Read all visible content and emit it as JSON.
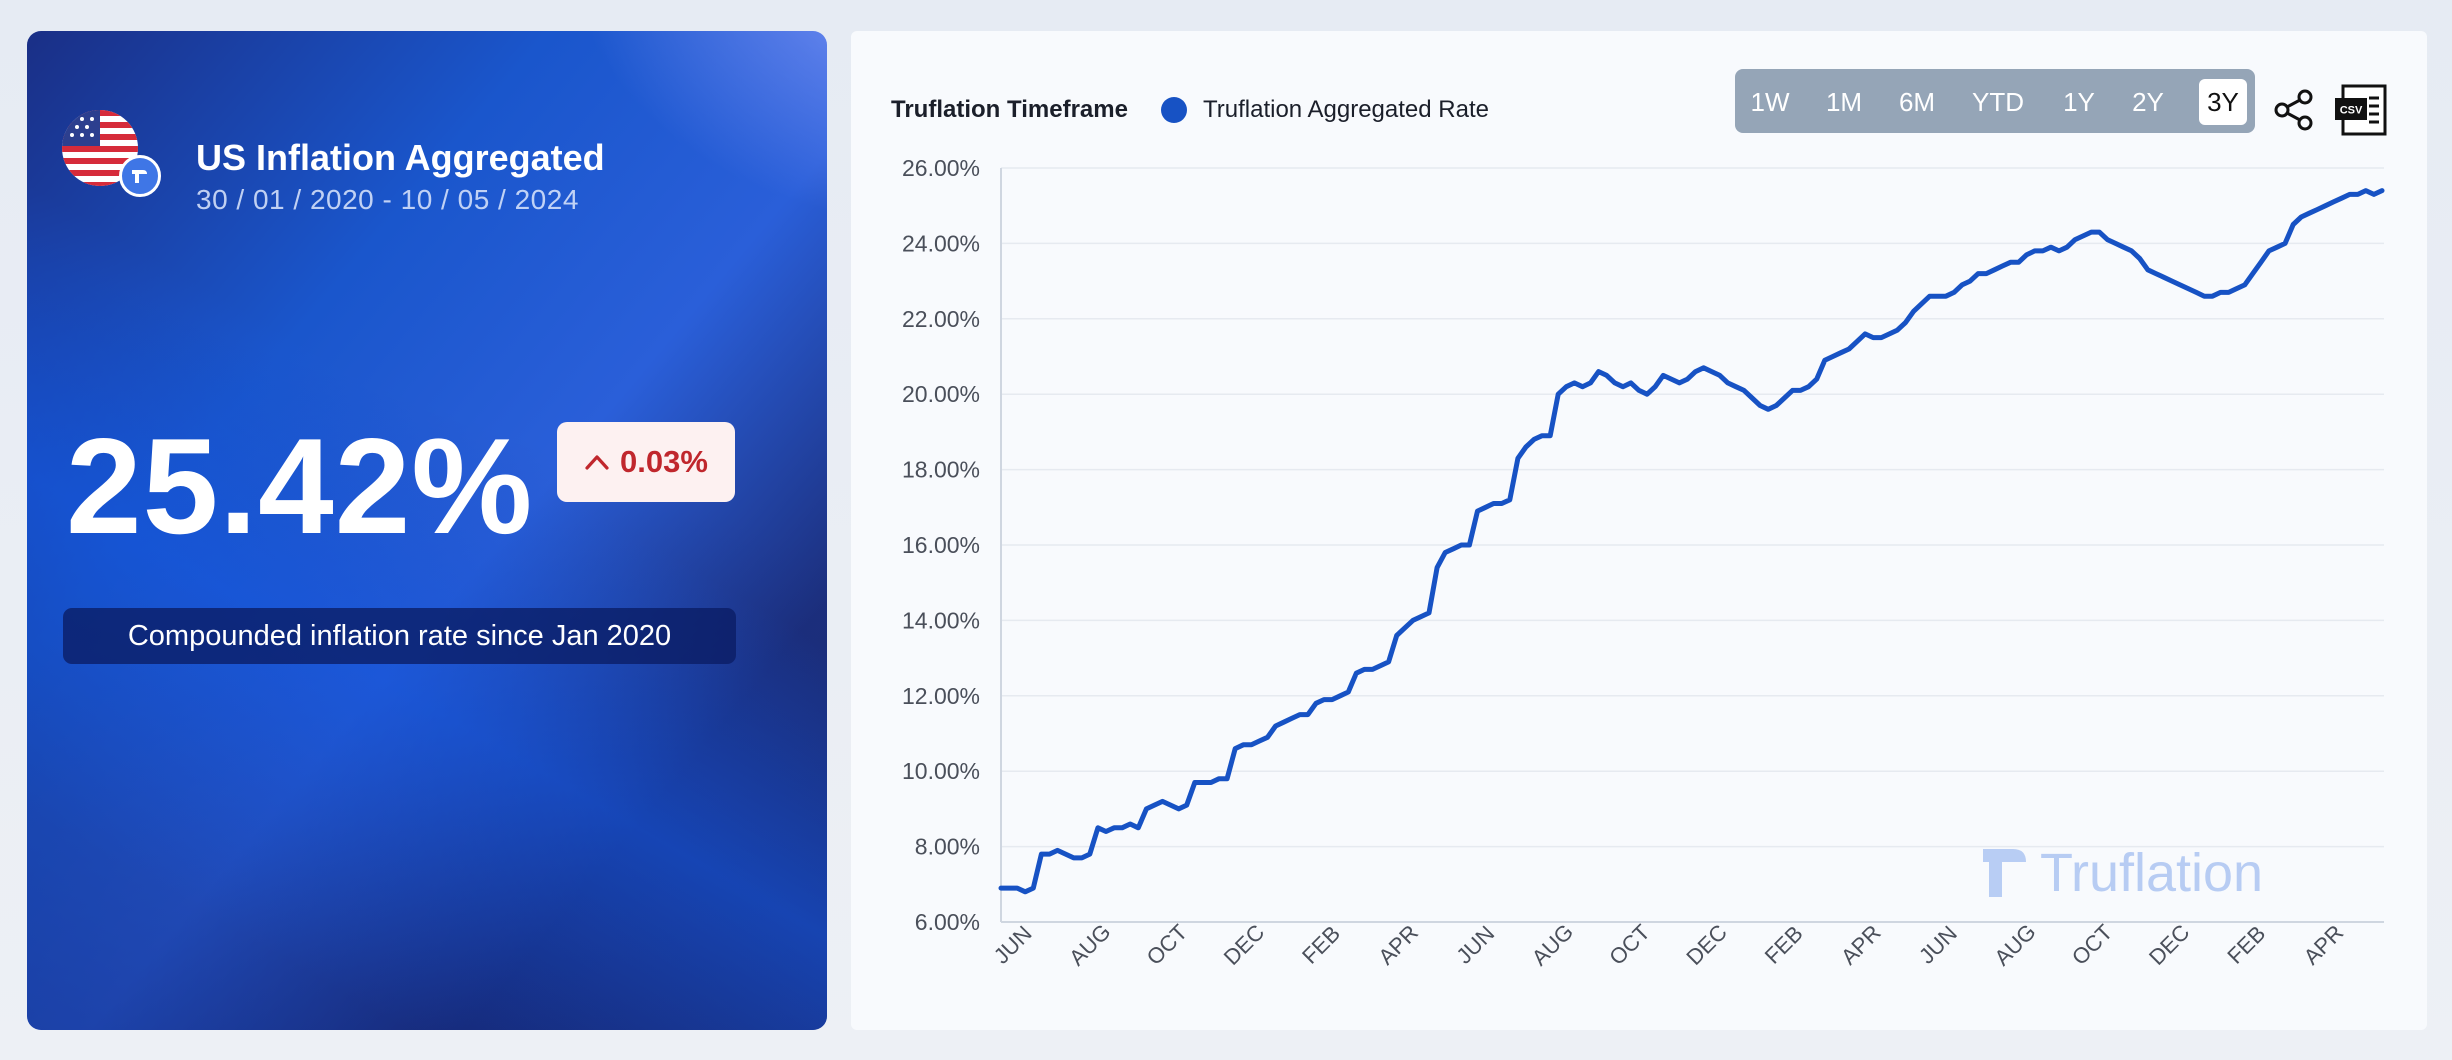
{
  "left_panel": {
    "title": "US Inflation Aggregated",
    "date_range": "30 / 01 / 2020 - 10 / 05 / 2024",
    "value": "25.42%",
    "change": "0.03%",
    "change_direction": "up",
    "caption": "Compounded inflation rate since Jan 2020",
    "icons": [
      "us-flag-icon",
      "truflation-logo-icon"
    ]
  },
  "chart_header": {
    "timeframe_label": "Truflation Timeframe",
    "series_label": "Truflation Aggregated Rate",
    "series_color": "#1752c4",
    "timeframes": [
      "1W",
      "1M",
      "6M",
      "YTD",
      "1Y",
      "2Y",
      "3Y"
    ],
    "active_timeframe": "3Y",
    "share_icon": "share-icon",
    "csv_icon": "csv-download-icon",
    "csv_text": "CSV"
  },
  "watermark": "Truflation",
  "chart_data": {
    "type": "line",
    "ylim": [
      6,
      26
    ],
    "y_ticks": [
      "6.00%",
      "8.00%",
      "10.00%",
      "12.00%",
      "14.00%",
      "16.00%",
      "18.00%",
      "20.00%",
      "22.00%",
      "24.00%",
      "26.00%"
    ],
    "x_ticks": [
      "JUN",
      "AUG",
      "OCT",
      "DEC",
      "FEB",
      "APR",
      "JUN",
      "AUG",
      "OCT",
      "DEC",
      "FEB",
      "APR",
      "JUN",
      "AUG",
      "OCT",
      "DEC",
      "FEB",
      "APR"
    ],
    "grid": true,
    "series": [
      {
        "name": "Truflation Aggregated Rate",
        "color": "#1752c4",
        "values": [
          6.9,
          6.9,
          6.9,
          6.8,
          6.9,
          7.8,
          7.8,
          7.9,
          7.8,
          7.7,
          7.7,
          7.8,
          8.5,
          8.4,
          8.5,
          8.5,
          8.6,
          8.5,
          9.0,
          9.1,
          9.2,
          9.1,
          9.0,
          9.1,
          9.7,
          9.7,
          9.7,
          9.8,
          9.8,
          10.6,
          10.7,
          10.7,
          10.8,
          10.9,
          11.2,
          11.3,
          11.4,
          11.5,
          11.5,
          11.8,
          11.9,
          11.9,
          12.0,
          12.1,
          12.6,
          12.7,
          12.7,
          12.8,
          12.9,
          13.6,
          13.8,
          14.0,
          14.1,
          14.2,
          15.4,
          15.8,
          15.9,
          16.0,
          16.0,
          16.9,
          17.0,
          17.1,
          17.1,
          17.2,
          18.3,
          18.6,
          18.8,
          18.9,
          18.9,
          20.0,
          20.2,
          20.3,
          20.2,
          20.3,
          20.6,
          20.5,
          20.3,
          20.2,
          20.3,
          20.1,
          20.0,
          20.2,
          20.5,
          20.4,
          20.3,
          20.4,
          20.6,
          20.7,
          20.6,
          20.5,
          20.3,
          20.2,
          20.1,
          19.9,
          19.7,
          19.6,
          19.7,
          19.9,
          20.1,
          20.1,
          20.2,
          20.4,
          20.9,
          21.0,
          21.1,
          21.2,
          21.4,
          21.6,
          21.5,
          21.5,
          21.6,
          21.7,
          21.9,
          22.2,
          22.4,
          22.6,
          22.6,
          22.6,
          22.7,
          22.9,
          23.0,
          23.2,
          23.2,
          23.3,
          23.4,
          23.5,
          23.5,
          23.7,
          23.8,
          23.8,
          23.9,
          23.8,
          23.9,
          24.1,
          24.2,
          24.3,
          24.3,
          24.1,
          24.0,
          23.9,
          23.8,
          23.6,
          23.3,
          23.2,
          23.1,
          23.0,
          22.9,
          22.8,
          22.7,
          22.6,
          22.6,
          22.7,
          22.7,
          22.8,
          22.9,
          23.2,
          23.5,
          23.8,
          23.9,
          24.0,
          24.5,
          24.7,
          24.8,
          24.9,
          25.0,
          25.1,
          25.2,
          25.3,
          25.3,
          25.4,
          25.3,
          25.4
        ]
      }
    ]
  }
}
